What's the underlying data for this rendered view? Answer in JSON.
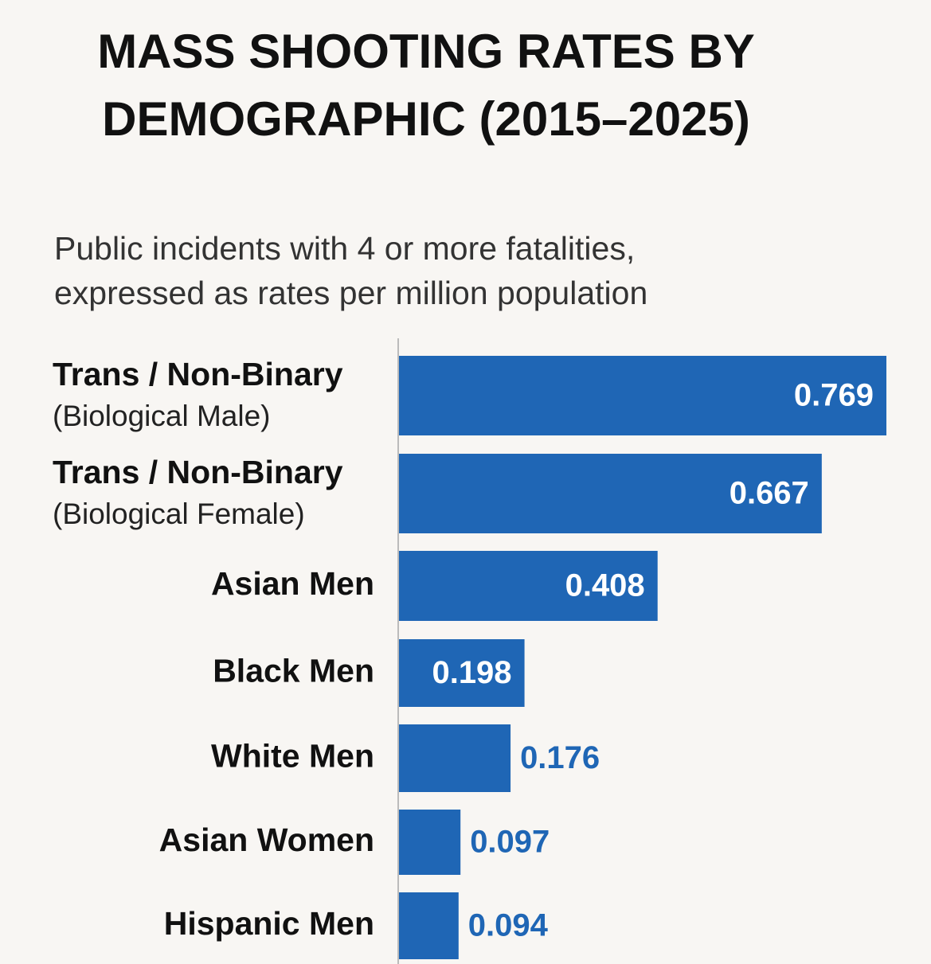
{
  "chart_data": {
    "type": "hbar",
    "title": "MASS SHOOTING RATES BY DEMOGRAPHIC (2015–2025)",
    "subtitle": "Public incidents with 4 or more fatalities, expressed as rates per million population",
    "categories": [
      "Trans / Non-Binary",
      "Trans / Non-Binary",
      "Asian Men",
      "Black Men",
      "White Men",
      "Asian Women",
      "Hispanic Men"
    ],
    "category_notes": [
      "(Biological Male)",
      "(Biological Female)",
      null,
      null,
      null,
      null,
      null
    ],
    "values": [
      0.769,
      0.667,
      0.408,
      0.198,
      0.176,
      0.097,
      0.094
    ],
    "color": "#1f66b5"
  }
}
